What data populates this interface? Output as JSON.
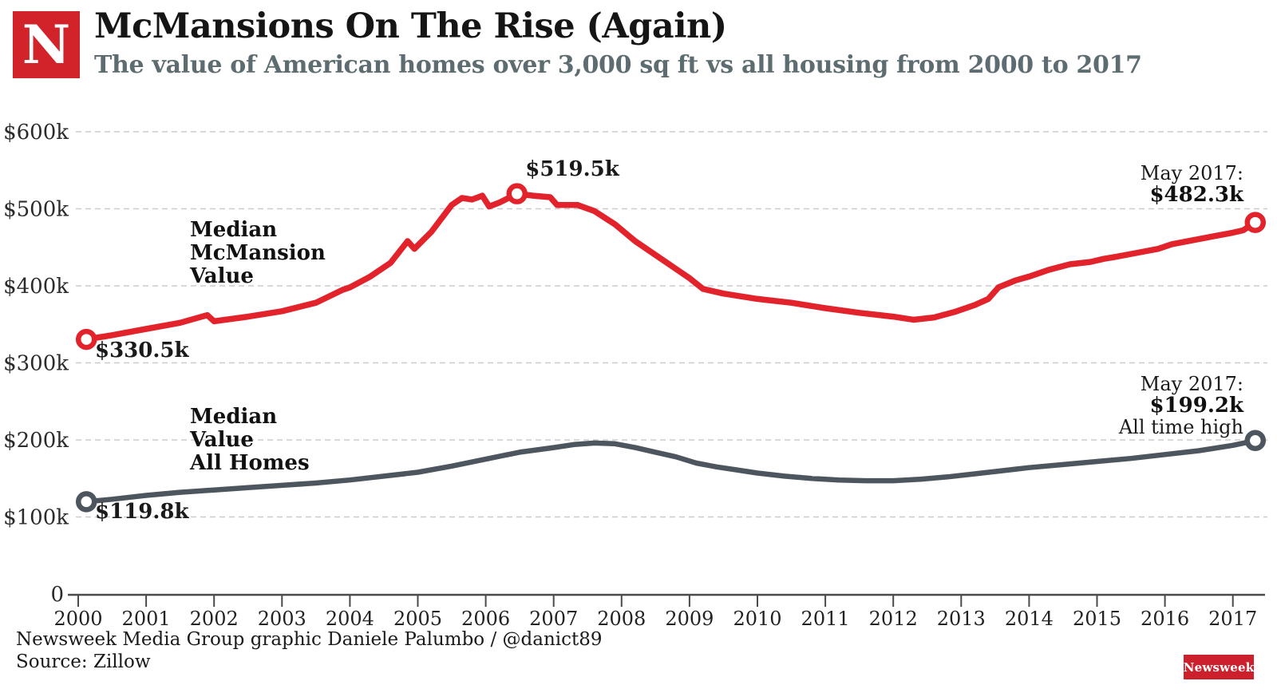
{
  "brand": {
    "logo_letter": "N",
    "wordmark": "Newsweek"
  },
  "header": {
    "title": "McMansions On The Rise (Again)",
    "subtitle": "The value of American homes over 3,000 sq ft vs all housing from 2000 to 2017"
  },
  "annotations": {
    "mcmansion_label": {
      "line1": "Median",
      "line2": "McMansion",
      "line3": "Value"
    },
    "allhomes_label": {
      "line1": "Median",
      "line2": "Value",
      "line3": "All Homes"
    },
    "mcmansion_start": "$330.5k",
    "mcmansion_peak": "$519.5k",
    "mcmansion_end_date": "May 2017:",
    "mcmansion_end_value": "$482.3k",
    "allhomes_start": "$119.8k",
    "allhomes_end_date": "May 2017:",
    "allhomes_end_value": "$199.2k",
    "allhomes_end_note": "All time high"
  },
  "footer": {
    "credit": "Newsweek Media Group graphic Daniele Palumbo / @danict89",
    "source": "Source: Zillow"
  },
  "colors": {
    "mcmansion_line": "#e2232b",
    "allhomes_line": "#4d565e",
    "gridline": "#cccccc",
    "axis": "#4a4a4a",
    "brand_red": "#d2232a",
    "subtitle_gray": "#5d6c70"
  },
  "chart_data": {
    "type": "line",
    "title": "McMansions On The Rise (Again)",
    "subtitle": "The value of American homes over 3,000 sq ft vs all housing from 2000 to 2017",
    "unit": "USD thousands",
    "grid": "horizontal dashed",
    "legend_position": "inline labels on chart",
    "x_range": [
      2000,
      2017.45
    ],
    "ylim": [
      0,
      620
    ],
    "x_axis": {
      "ticks": [
        2000,
        2001,
        2002,
        2003,
        2004,
        2005,
        2006,
        2007,
        2008,
        2009,
        2010,
        2011,
        2012,
        2013,
        2014,
        2015,
        2016,
        2017
      ]
    },
    "y_axis": {
      "ticks": [
        {
          "value": 600,
          "label": "$600k",
          "gridline": true
        },
        {
          "value": 500,
          "label": "$500k",
          "gridline": true
        },
        {
          "value": 400,
          "label": "$400k",
          "gridline": true
        },
        {
          "value": 300,
          "label": "$300k",
          "gridline": true
        },
        {
          "value": 200,
          "label": "$200k",
          "gridline": true
        },
        {
          "value": 100,
          "label": "$100k",
          "gridline": true
        },
        {
          "value": 0,
          "label": "0",
          "gridline": false
        }
      ]
    },
    "series": [
      {
        "name": "Median McMansion Value",
        "color": "#e2232b",
        "start_value": 330.5,
        "peak": {
          "x": 2006.46,
          "value": 519.5
        },
        "end": {
          "x": 2017.33,
          "value": 482.3,
          "date": "May 2017"
        },
        "points": [
          [
            2000.12,
            330.5
          ],
          [
            2000.5,
            336
          ],
          [
            2001.0,
            344
          ],
          [
            2001.5,
            352
          ],
          [
            2001.9,
            362
          ],
          [
            2002.0,
            354
          ],
          [
            2002.5,
            360
          ],
          [
            2003.0,
            367
          ],
          [
            2003.5,
            378
          ],
          [
            2003.9,
            395
          ],
          [
            2004.0,
            398
          ],
          [
            2004.3,
            412
          ],
          [
            2004.6,
            430
          ],
          [
            2004.85,
            458
          ],
          [
            2004.95,
            448
          ],
          [
            2005.2,
            470
          ],
          [
            2005.5,
            505
          ],
          [
            2005.65,
            514
          ],
          [
            2005.8,
            512
          ],
          [
            2005.95,
            517
          ],
          [
            2006.05,
            503
          ],
          [
            2006.2,
            508
          ],
          [
            2006.46,
            519.5
          ],
          [
            2006.7,
            517
          ],
          [
            2006.95,
            515
          ],
          [
            2007.05,
            505
          ],
          [
            2007.35,
            505
          ],
          [
            2007.6,
            497
          ],
          [
            2007.9,
            480
          ],
          [
            2008.2,
            458
          ],
          [
            2008.5,
            440
          ],
          [
            2008.8,
            422
          ],
          [
            2009.0,
            410
          ],
          [
            2009.2,
            396
          ],
          [
            2009.5,
            390
          ],
          [
            2010.0,
            383
          ],
          [
            2010.5,
            378
          ],
          [
            2011.0,
            371
          ],
          [
            2011.5,
            365
          ],
          [
            2012.0,
            360
          ],
          [
            2012.3,
            356
          ],
          [
            2012.6,
            359
          ],
          [
            2012.9,
            366
          ],
          [
            2013.2,
            375
          ],
          [
            2013.4,
            383
          ],
          [
            2013.55,
            398
          ],
          [
            2013.8,
            407
          ],
          [
            2014.0,
            412
          ],
          [
            2014.3,
            421
          ],
          [
            2014.6,
            428
          ],
          [
            2014.9,
            431
          ],
          [
            2015.1,
            435
          ],
          [
            2015.3,
            438
          ],
          [
            2015.6,
            443
          ],
          [
            2015.9,
            448
          ],
          [
            2016.1,
            454
          ],
          [
            2016.4,
            459
          ],
          [
            2016.7,
            464
          ],
          [
            2017.0,
            469
          ],
          [
            2017.15,
            472
          ],
          [
            2017.33,
            482.3
          ]
        ],
        "markers": [
          [
            2000.12,
            330.5
          ],
          [
            2006.46,
            519.5
          ],
          [
            2017.33,
            482.3
          ]
        ]
      },
      {
        "name": "Median Value All Homes",
        "color": "#4d565e",
        "start_value": 119.8,
        "end": {
          "x": 2017.33,
          "value": 199.2,
          "date": "May 2017",
          "note": "All time high"
        },
        "points": [
          [
            2000.12,
            119.8
          ],
          [
            2000.5,
            123
          ],
          [
            2001.0,
            128
          ],
          [
            2001.5,
            132
          ],
          [
            2002.0,
            135
          ],
          [
            2002.5,
            138
          ],
          [
            2003.0,
            141
          ],
          [
            2003.5,
            144
          ],
          [
            2004.0,
            148
          ],
          [
            2004.5,
            153
          ],
          [
            2005.0,
            158
          ],
          [
            2005.5,
            166
          ],
          [
            2006.0,
            175
          ],
          [
            2006.5,
            184
          ],
          [
            2007.0,
            190
          ],
          [
            2007.3,
            194
          ],
          [
            2007.6,
            196
          ],
          [
            2007.9,
            195
          ],
          [
            2008.2,
            190
          ],
          [
            2008.5,
            184
          ],
          [
            2008.8,
            178
          ],
          [
            2009.1,
            170
          ],
          [
            2009.4,
            165
          ],
          [
            2009.7,
            161
          ],
          [
            2010.0,
            157
          ],
          [
            2010.4,
            153
          ],
          [
            2010.8,
            150
          ],
          [
            2011.2,
            148
          ],
          [
            2011.6,
            147
          ],
          [
            2012.0,
            147
          ],
          [
            2012.4,
            149
          ],
          [
            2012.8,
            152
          ],
          [
            2013.2,
            156
          ],
          [
            2013.6,
            160
          ],
          [
            2014.0,
            164
          ],
          [
            2014.5,
            168
          ],
          [
            2015.0,
            172
          ],
          [
            2015.5,
            176
          ],
          [
            2016.0,
            181
          ],
          [
            2016.5,
            186
          ],
          [
            2017.0,
            193
          ],
          [
            2017.33,
            199.2
          ]
        ],
        "markers": [
          [
            2000.12,
            119.8
          ],
          [
            2017.33,
            199.2
          ]
        ]
      }
    ]
  }
}
